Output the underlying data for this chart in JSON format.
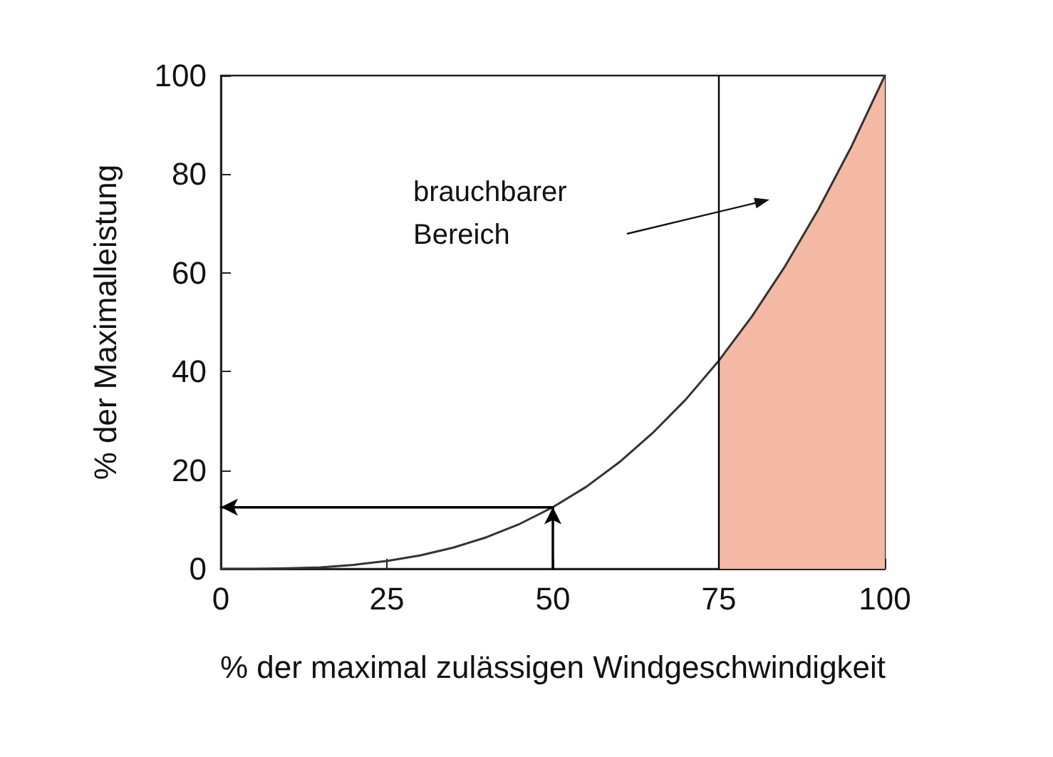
{
  "chart_data": {
    "type": "line",
    "xlabel": "% der maximal zulässigen Windgeschwindigkeit",
    "ylabel": "% der Maximalleistung",
    "xlim": [
      0,
      100
    ],
    "xticks": [
      0,
      25,
      50,
      75,
      100
    ],
    "ylim": [
      0,
      100
    ],
    "yticks": [
      0,
      20,
      40,
      60,
      80,
      100
    ],
    "grid": false,
    "marker": "none",
    "line_style": "solid",
    "series": [
      {
        "type": "area",
        "color": "#f4b9a4",
        "x": [
          75,
          80,
          85,
          90,
          95,
          100
        ],
        "values": [
          42.2,
          51.2,
          61.4,
          72.9,
          85.7,
          100
        ]
      },
      {
        "color": "#333333",
        "x": [
          0,
          5,
          10,
          15,
          20,
          25,
          30,
          35,
          40,
          45,
          50,
          55,
          60,
          65,
          70,
          75,
          80,
          85,
          90,
          95,
          100
        ],
        "values": [
          0,
          0,
          0.1,
          0.3,
          0.8,
          1.6,
          2.7,
          4.3,
          6.4,
          9.1,
          12.5,
          16.6,
          21.6,
          27.5,
          34.3,
          42.2,
          51.2,
          61.4,
          72.9,
          85.7,
          100
        ]
      },
      {
        "type": "line",
        "color": "#000000",
        "x": [
          50,
          50,
          0
        ],
        "values": [
          0,
          12.5,
          12.5
        ]
      }
    ],
    "ref_lines": [
      {
        "axis": "x",
        "value": 75,
        "color": "#000000",
        "line_style": "solid"
      }
    ],
    "annotations": [
      "brauchbarer Bereich"
    ]
  }
}
